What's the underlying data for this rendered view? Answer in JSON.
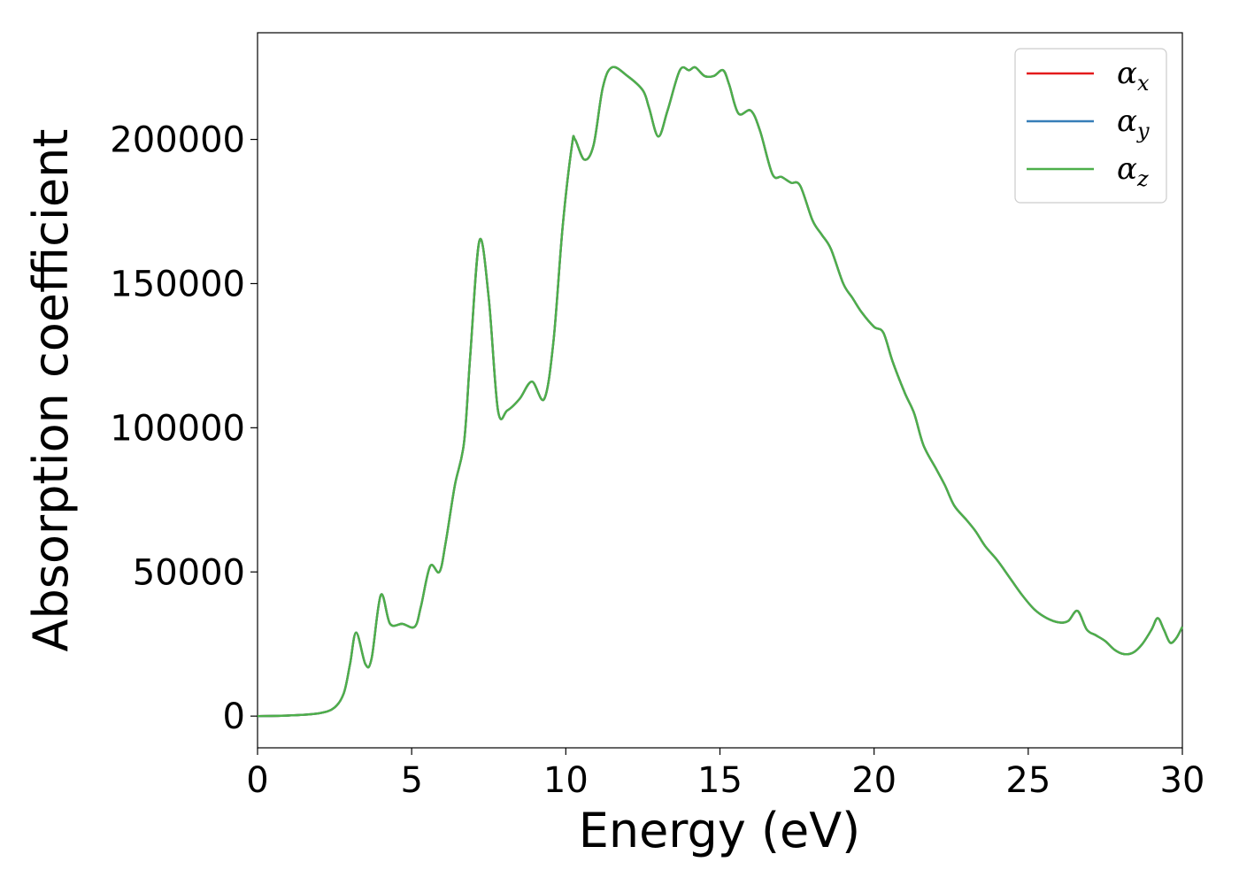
{
  "chart_data": {
    "type": "line",
    "title": "",
    "xlabel": "Energy (eV)",
    "ylabel": "Absorption coefficient",
    "xlim": [
      0,
      30
    ],
    "ylim": [
      -11000,
      237000
    ],
    "xticks": [
      0,
      5,
      10,
      15,
      20,
      25,
      30
    ],
    "yticks": [
      0,
      50000,
      100000,
      150000,
      200000
    ],
    "xtick_labels": [
      "0",
      "5",
      "10",
      "15",
      "20",
      "25",
      "30"
    ],
    "ytick_labels": [
      "0",
      "50000",
      "100000",
      "150000",
      "200000"
    ],
    "grid": false,
    "legend_position": "top-right",
    "series": [
      {
        "name": "α",
        "subscript": "x",
        "color": "#e41a1c"
      },
      {
        "name": "α",
        "subscript": "y",
        "color": "#377eb8"
      },
      {
        "name": "α",
        "subscript": "z",
        "color": "#4daf4a"
      }
    ],
    "x": [
      0,
      1,
      2,
      2.5,
      2.8,
      3.0,
      3.2,
      3.5,
      3.7,
      4.0,
      4.3,
      4.7,
      5.1,
      5.3,
      5.6,
      5.9,
      6.1,
      6.4,
      6.7,
      6.9,
      7.2,
      7.5,
      7.8,
      8.1,
      8.5,
      8.9,
      9.3,
      9.6,
      9.9,
      10.2,
      10.3,
      10.6,
      10.9,
      11.2,
      11.5,
      12.0,
      12.5,
      12.7,
      13.0,
      13.3,
      13.7,
      14.0,
      14.2,
      14.5,
      14.8,
      15.1,
      15.3,
      15.6,
      16.0,
      16.3,
      16.7,
      17.0,
      17.3,
      17.6,
      18.0,
      18.3,
      18.6,
      19.0,
      19.3,
      19.6,
      20.0,
      20.3,
      20.6,
      21.0,
      21.3,
      21.6,
      22.0,
      22.3,
      22.6,
      23.0,
      23.3,
      23.6,
      24.0,
      24.4,
      24.8,
      25.2,
      25.6,
      26.0,
      26.3,
      26.6,
      26.9,
      27.2,
      27.5,
      27.8,
      28.1,
      28.4,
      28.7,
      29.0,
      29.2,
      29.4,
      29.6,
      29.8,
      30.0
    ],
    "values": [
      0,
      200,
      1000,
      3000,
      8000,
      18000,
      29000,
      18000,
      20000,
      42000,
      32000,
      32000,
      31000,
      38000,
      52000,
      50000,
      60000,
      80000,
      95000,
      125000,
      165000,
      145000,
      106000,
      106000,
      110000,
      116000,
      110000,
      130000,
      170000,
      198000,
      200000,
      193000,
      198000,
      218000,
      225000,
      222000,
      217000,
      211000,
      201000,
      210000,
      224000,
      224000,
      225000,
      222000,
      222000,
      224000,
      219000,
      209000,
      210000,
      203000,
      188000,
      187000,
      185000,
      184000,
      172000,
      167000,
      162000,
      150000,
      145000,
      140000,
      135000,
      133000,
      123000,
      112000,
      105000,
      94000,
      86000,
      80000,
      73000,
      68000,
      64000,
      59000,
      54000,
      48000,
      42000,
      37000,
      34000,
      32500,
      33000,
      36500,
      30000,
      28000,
      26000,
      23000,
      21500,
      22000,
      25000,
      30000,
      34000,
      30000,
      25500,
      27000,
      31000
    ]
  }
}
